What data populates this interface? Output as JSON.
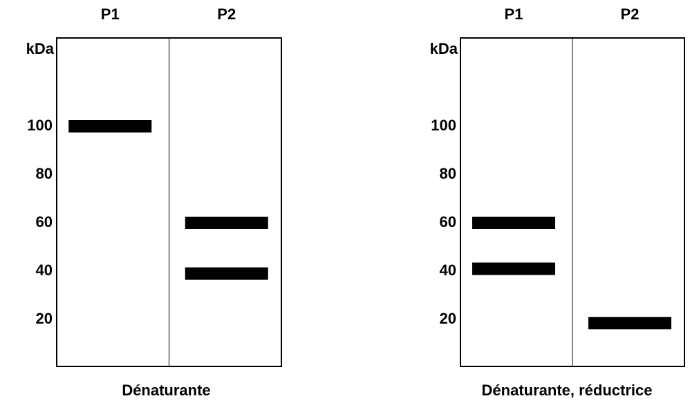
{
  "panels": [
    {
      "unit": "kDa",
      "ticks": [
        100,
        80,
        60,
        40,
        20
      ],
      "lanes": [
        {
          "label": "P1",
          "bands": [
            100
          ]
        },
        {
          "label": "P2",
          "bands": [
            60,
            39
          ]
        }
      ],
      "caption": "Dénaturante"
    },
    {
      "unit": "kDa",
      "ticks": [
        100,
        80,
        60,
        40,
        20
      ],
      "lanes": [
        {
          "label": "P1",
          "bands": [
            60,
            41
          ]
        },
        {
          "label": "P2",
          "bands": [
            18.5
          ]
        }
      ],
      "caption": "Dénaturante, réductrice"
    }
  ]
}
